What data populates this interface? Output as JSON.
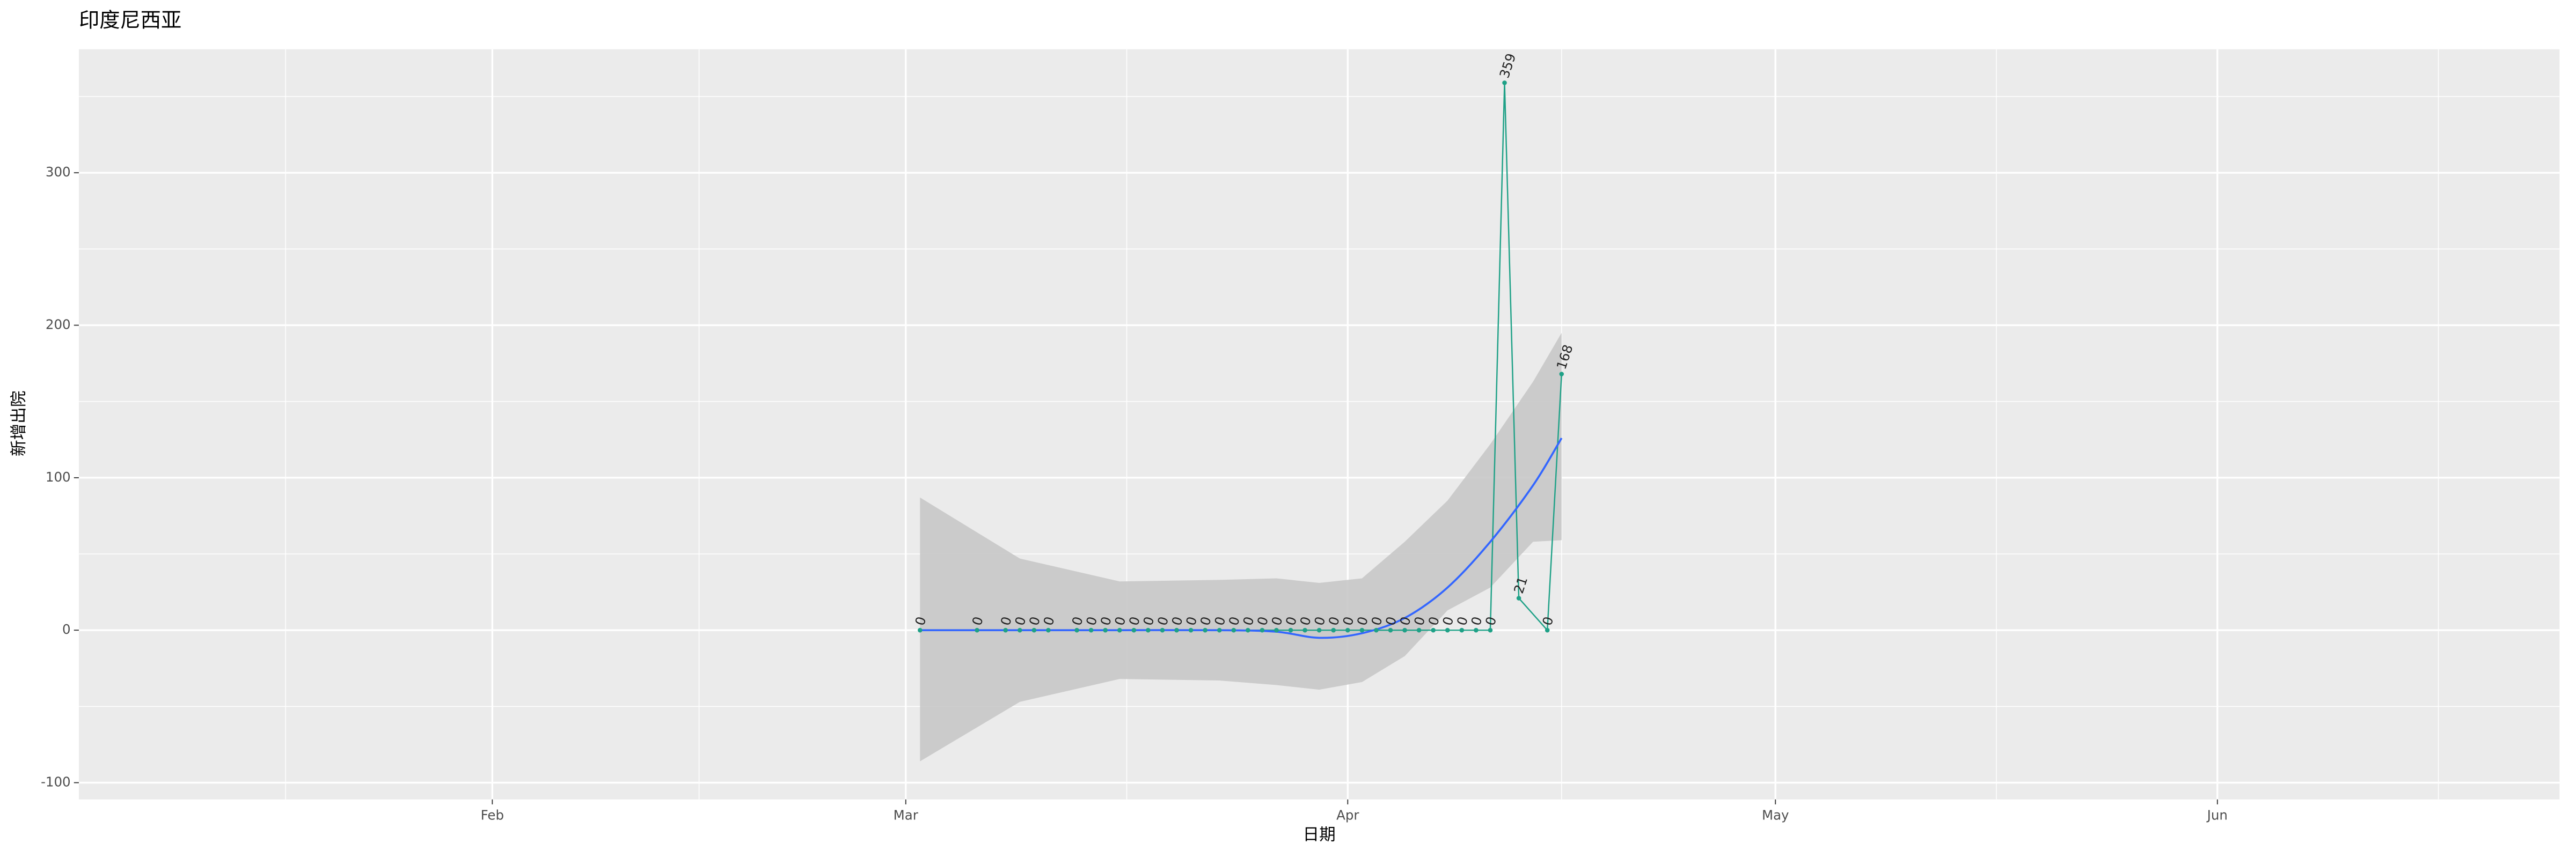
{
  "chart_data": {
    "type": "line",
    "title": "印度尼西亚",
    "x_label": "日期",
    "y_label": "新增出院",
    "x": [
      "03-02",
      "03-06",
      "03-08",
      "03-09",
      "03-10",
      "03-11",
      "03-13",
      "03-14",
      "03-15",
      "03-16",
      "03-17",
      "03-18",
      "03-19",
      "03-20",
      "03-21",
      "03-22",
      "03-23",
      "03-24",
      "03-25",
      "03-26",
      "03-27",
      "03-28",
      "03-29",
      "03-30",
      "03-31",
      "04-01",
      "04-02",
      "04-03",
      "04-04",
      "04-05",
      "04-06",
      "04-07",
      "04-08",
      "04-09",
      "04-10",
      "04-11",
      "04-12",
      "04-13",
      "04-15",
      "04-16"
    ],
    "values": [
      0,
      0,
      0,
      0,
      0,
      0,
      0,
      0,
      0,
      0,
      0,
      0,
      0,
      0,
      0,
      0,
      0,
      0,
      0,
      0,
      0,
      0,
      0,
      0,
      0,
      0,
      0,
      0,
      0,
      0,
      0,
      0,
      0,
      0,
      0,
      0,
      359,
      21,
      0,
      168
    ],
    "color": "#1fa187",
    "smooth": {
      "color": "#3366ff",
      "band_color": "#c8c8c8",
      "x": [
        "03-02",
        "03-09",
        "03-16",
        "03-23",
        "03-27",
        "03-30",
        "04-02",
        "04-05",
        "04-08",
        "04-11",
        "04-14",
        "04-16"
      ],
      "values": [
        0,
        0,
        0,
        0,
        -1,
        -5,
        -2,
        8,
        28,
        58,
        95,
        126
      ],
      "lower": [
        -86,
        -47,
        -32,
        -33,
        -36,
        -39,
        -34,
        -17,
        13,
        28,
        58,
        59
      ],
      "upper": [
        87,
        47,
        32,
        33,
        34,
        31,
        34,
        58,
        85,
        122,
        163,
        195
      ]
    },
    "xlim": [
      "01-03",
      "06-25"
    ],
    "xticks": [
      {
        "value": "02-01",
        "label": "Feb"
      },
      {
        "value": "03-01",
        "label": "Mar"
      },
      {
        "value": "04-01",
        "label": "Apr"
      },
      {
        "value": "05-01",
        "label": "May"
      },
      {
        "value": "06-01",
        "label": "Jun"
      }
    ],
    "ylim": [
      -111,
      381
    ],
    "yticks": [
      -100,
      0,
      100,
      200,
      300
    ],
    "grid": true
  }
}
